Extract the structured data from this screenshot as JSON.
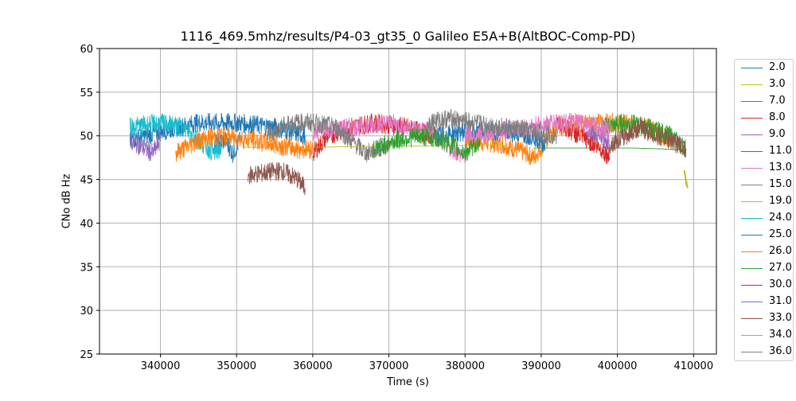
{
  "title": "1116_469.5mhz/results/P4-03_gt35_0 Galileo E5A+B(AltBOC-Comp-PD)",
  "chart_data": {
    "type": "line",
    "title": "1116_469.5mhz/results/P4-03_gt35_0 Galileo E5A+B(AltBOC-Comp-PD)",
    "xlabel": "Time (s)",
    "ylabel": "CNo dB Hz",
    "xlim": [
      332000,
      413000
    ],
    "ylim": [
      25,
      60
    ],
    "x_ticks": [
      340000,
      350000,
      360000,
      370000,
      380000,
      390000,
      400000,
      410000
    ],
    "y_ticks": [
      25,
      30,
      35,
      40,
      45,
      50,
      55,
      60
    ],
    "grid": true,
    "legend_position": "right",
    "series": [
      {
        "name": "2.0",
        "color": "#1f77b4",
        "x": [
          336000,
          340000,
          345000,
          350000,
          355000,
          359000
        ],
        "y": [
          49.5,
          50.5,
          51.5,
          51.5,
          51.0,
          50.0
        ]
      },
      {
        "name": "3.0",
        "color": "#bcbd22",
        "x": [
          408800,
          409000,
          409200
        ],
        "y": [
          45.8,
          44.8,
          44.0
        ]
      },
      {
        "name": "7.0",
        "color": "#2ca02c",
        "x": [
          389000,
          394000,
          398000,
          402000,
          406000,
          409000
        ],
        "y": [
          48.6,
          48.6,
          48.6,
          48.6,
          48.5,
          48.3
        ]
      },
      {
        "name": "8.0",
        "color": "#d62728",
        "x": [
          360000,
          362000,
          365000,
          368000,
          372000,
          376000
        ],
        "y": [
          48.0,
          50.0,
          51.0,
          51.5,
          51.0,
          50.0
        ]
      },
      {
        "name": "9.0",
        "color": "#9467bd",
        "x": [
          336000,
          337000,
          338000,
          339000,
          340000
        ],
        "y": [
          49.5,
          49.0,
          48.5,
          48.0,
          49.5
        ]
      },
      {
        "name": "11.0",
        "color": "#8c564b",
        "x": [
          351500,
          354000,
          356000,
          358000,
          359000
        ],
        "y": [
          45.5,
          45.8,
          46.0,
          45.0,
          44.0
        ]
      },
      {
        "name": "13.0",
        "color": "#e377c2",
        "x": [
          360000,
          365000,
          370000,
          375000,
          380000
        ],
        "y": [
          50.5,
          51.0,
          51.5,
          50.5,
          47.5
        ]
      },
      {
        "name": "15.0",
        "color": "#7f7f7f",
        "x": [
          354000,
          357000,
          360000,
          363000,
          367000,
          370000
        ],
        "y": [
          50.0,
          51.5,
          51.5,
          51.0,
          48.0,
          49.0
        ]
      },
      {
        "name": "19.0",
        "color": "#bcbd22",
        "x": [
          351000,
          360000,
          370000,
          380000,
          385000
        ],
        "y": [
          48.7,
          48.7,
          48.8,
          48.9,
          49.0
        ]
      },
      {
        "name": "24.0",
        "color": "#17becf",
        "x": [
          336000,
          340000,
          343000,
          345000,
          347000,
          348000
        ],
        "y": [
          51.0,
          51.5,
          51.0,
          49.5,
          48.0,
          48.5
        ]
      },
      {
        "name": "25.0",
        "color": "#1f77b4",
        "x": [
          376000,
          380000,
          385000,
          389000,
          390500
        ],
        "y": [
          50.0,
          50.5,
          50.5,
          50.0,
          49.0
        ]
      },
      {
        "name": "26.0",
        "color": "#ff7f0e",
        "x": [
          342000,
          345000,
          348000,
          352000,
          358000,
          360000
        ],
        "y": [
          48.0,
          49.5,
          50.0,
          49.5,
          48.5,
          48.5
        ]
      },
      {
        "name": "27.0",
        "color": "#2ca02c",
        "x": [
          368000,
          371000,
          374000,
          377000,
          380000,
          382000
        ],
        "y": [
          48.5,
          49.5,
          50.0,
          49.5,
          48.0,
          49.5
        ]
      },
      {
        "name": "30.0",
        "color": "#d62728",
        "x": [
          392000,
          395000,
          397000,
          398500,
          399000
        ],
        "y": [
          51.5,
          50.0,
          49.0,
          48.0,
          47.5
        ]
      },
      {
        "name": "31.0",
        "color": "#9467bd",
        "x": [
          396000,
          397500,
          398500,
          399000
        ],
        "y": [
          50.5,
          50.0,
          49.5,
          49.0
        ]
      },
      {
        "name": "33.0",
        "color": "#8c564b",
        "x": [
          399000,
          401000,
          403000,
          405000,
          407000,
          409000
        ],
        "y": [
          49.0,
          50.0,
          51.0,
          50.0,
          49.5,
          48.5
        ]
      },
      {
        "name": "34.0",
        "color": "#e377c2",
        "x": [
          380000,
          384000,
          388000,
          392000,
          396000,
          399000
        ],
        "y": [
          50.0,
          50.5,
          51.0,
          51.5,
          51.5,
          50.5
        ]
      },
      {
        "name": "36.0",
        "color": "#7f7f7f",
        "x": [
          375000,
          378000,
          381000,
          385000,
          389000,
          392000
        ],
        "y": [
          51.5,
          52.0,
          51.5,
          51.0,
          50.5,
          50.0
        ]
      }
    ],
    "extra_lines": [
      {
        "color": "#ff7f0e",
        "x": [
          380000,
          385000,
          388000,
          389000,
          392000,
          396000,
          400000,
          404000,
          407000
        ],
        "y": [
          49.5,
          49.0,
          48.0,
          47.5,
          51.0,
          51.5,
          51.5,
          51.0,
          49.5
        ]
      },
      {
        "color": "#2ca02c",
        "x": [
          398000,
          401000,
          404000,
          407000,
          409000
        ],
        "y": [
          51.0,
          51.5,
          51.0,
          50.0,
          48.5
        ]
      },
      {
        "color": "#1f77b4",
        "x": [
          347000,
          348500,
          349500,
          350500
        ],
        "y": [
          49.0,
          49.5,
          48.0,
          49.5
        ]
      }
    ]
  }
}
